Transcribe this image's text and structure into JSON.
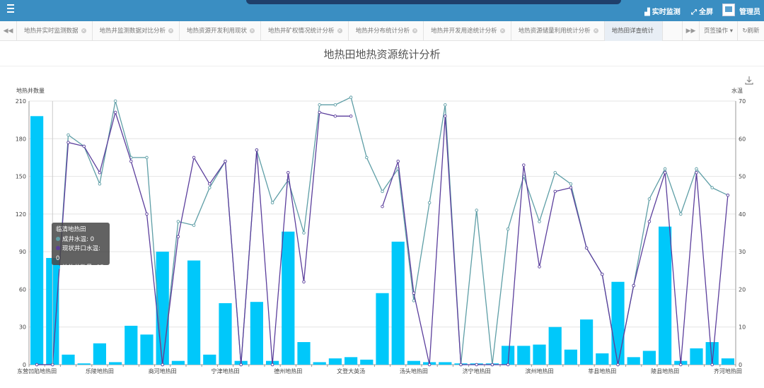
{
  "header": {
    "realtime_label": "实时监测",
    "fullscreen_label": "全屏",
    "user_label": "管理员"
  },
  "tabs": [
    {
      "label": "地热井实时监测数据",
      "active": false
    },
    {
      "label": "地热井监测数据对比分析",
      "active": false
    },
    {
      "label": "地热资源开发利用现状",
      "active": false
    },
    {
      "label": "地热井矿权情况统计分析",
      "active": false
    },
    {
      "label": "地热井分布统计分析",
      "active": false
    },
    {
      "label": "地热井开发用途统计分析",
      "active": false
    },
    {
      "label": "地热资源储量利用统计分析",
      "active": false
    },
    {
      "label": "地热田详查统计",
      "active": true
    }
  ],
  "tab_controls": {
    "ops_label": "页签操作",
    "refresh_label": "刷新"
  },
  "tooltip": {
    "title": "临清地热田",
    "rows": [
      {
        "label": "成井水温: 0",
        "color": "#5e9ea6"
      },
      {
        "label": "现状井口水温: 0",
        "color": "#5b3e9c"
      },
      {
        "label": "地热井数量: 85",
        "color": "#00c8fa"
      }
    ]
  },
  "colors": {
    "bar": "#00c8fa",
    "line_completion": "#5e9ea6",
    "line_current": "#5b3e9c"
  },
  "chart_data": {
    "type": "bar",
    "title": "地热田地热资源统计分析",
    "y_left_label": "地热井数量",
    "y_right_label": "水温",
    "y_left_range": [
      0,
      210
    ],
    "y_left_ticks": [
      0,
      30,
      60,
      90,
      120,
      150,
      180,
      210
    ],
    "y_right_range": [
      0,
      70
    ],
    "y_right_ticks": [
      0,
      10,
      20,
      30,
      40,
      50,
      60,
      70
    ],
    "x_tick_labels": [
      {
        "index": 0,
        "label": "东营凹陷地热田"
      },
      {
        "index": 4,
        "label": "乐陵地热田"
      },
      {
        "index": 8,
        "label": "商河地热田"
      },
      {
        "index": 12,
        "label": "宁津地热田"
      },
      {
        "index": 16,
        "label": "德州地热田"
      },
      {
        "index": 20,
        "label": "文登大英汤"
      },
      {
        "index": 24,
        "label": "汤头地热田"
      },
      {
        "index": 28,
        "label": "济宁地热田"
      },
      {
        "index": 32,
        "label": "滨州地热田"
      },
      {
        "index": 36,
        "label": "莘县地热田"
      },
      {
        "index": 40,
        "label": "陵县地热田"
      },
      {
        "index": 44,
        "label": "齐河地热田"
      }
    ],
    "category_count": 45,
    "bar_counts": [
      198,
      85,
      8,
      1,
      17,
      2,
      31,
      24,
      90,
      3,
      83,
      8,
      49,
      3,
      50,
      3,
      106,
      18,
      2,
      5,
      6,
      4,
      57,
      98,
      3,
      2,
      2,
      1,
      1,
      1,
      15,
      15,
      16,
      30,
      12,
      36,
      9,
      66,
      6,
      11,
      110,
      3,
      13,
      18,
      5
    ],
    "series": [
      {
        "name": "成井水温",
        "values": [
          0,
          0,
          61,
          58,
          48,
          70,
          55,
          55,
          0,
          38,
          37,
          47,
          54,
          0,
          57,
          43,
          49,
          35,
          69,
          69,
          71,
          55,
          46,
          52,
          17,
          43,
          69,
          0,
          41,
          0,
          36,
          50,
          38,
          51,
          48,
          31,
          24,
          0,
          21,
          44,
          52,
          40,
          52,
          47,
          45
        ]
      },
      {
        "name": "现状井口水温",
        "values": [
          0,
          0,
          59,
          58,
          51,
          67,
          54,
          40,
          0,
          34,
          55,
          48,
          54,
          0,
          57,
          0,
          51,
          22,
          67,
          66,
          66,
          null,
          42,
          54,
          19,
          0,
          66,
          0,
          0,
          0,
          0,
          53,
          26,
          46,
          47,
          31,
          24,
          0,
          21,
          38,
          51,
          0,
          51,
          0,
          45
        ]
      }
    ]
  }
}
